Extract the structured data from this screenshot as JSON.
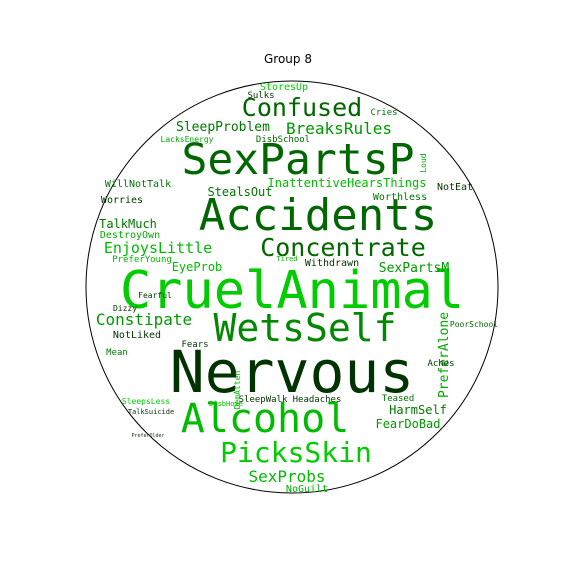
{
  "chart_data": {
    "type": "wordcloud",
    "title": "Group 8",
    "shape": "circle",
    "words": [
      {
        "text": "Nervous",
        "color": "#003300"
      },
      {
        "text": "CruelAnimal",
        "color": "#00cc00"
      },
      {
        "text": "Accidents",
        "color": "#006600"
      },
      {
        "text": "SexPartsP",
        "color": "#006600"
      },
      {
        "text": "WetsSelf",
        "color": "#008800"
      },
      {
        "text": "Alcohol",
        "color": "#00bb00"
      },
      {
        "text": "Concentrate",
        "color": "#006600"
      },
      {
        "text": "PicksSkin",
        "color": "#00cc00"
      },
      {
        "text": "Confused",
        "color": "#006600"
      },
      {
        "text": "EnjoysLittle",
        "color": "#00bb00"
      },
      {
        "text": "Constipate",
        "color": "#009900"
      },
      {
        "text": "SexProbs",
        "color": "#00bb00"
      },
      {
        "text": "BreaksRules",
        "color": "#009900"
      },
      {
        "text": "SleepProblem",
        "color": "#007700"
      },
      {
        "text": "StealsOut",
        "color": "#007700"
      },
      {
        "text": "InattentiveHearsThings",
        "color": "#00bb00"
      },
      {
        "text": "SexPartsM",
        "color": "#009900"
      },
      {
        "text": "EyeProb",
        "color": "#00bb00"
      },
      {
        "text": "PreferAlone",
        "color": "#00aa00"
      },
      {
        "text": "TalkMuch",
        "color": "#007700"
      },
      {
        "text": "HarmSelf",
        "color": "#007700"
      },
      {
        "text": "FearDoBad",
        "color": "#009900"
      },
      {
        "text": "NoGuilt",
        "color": "#00aa00"
      },
      {
        "text": "Worries",
        "color": "#003300"
      },
      {
        "text": "DestroyOwn",
        "color": "#00aa00"
      },
      {
        "text": "WillNotTalk",
        "color": "#007700"
      },
      {
        "text": "Withdrawn",
        "color": "#003300"
      },
      {
        "text": "NotLiked",
        "color": "#003300"
      },
      {
        "text": "StoresUp",
        "color": "#00cc00"
      },
      {
        "text": "Sulks",
        "color": "#003300"
      },
      {
        "text": "Cries",
        "color": "#007700"
      },
      {
        "text": "LacksEnergy",
        "color": "#00aa00"
      },
      {
        "text": "DisbSchool",
        "color": "#006600"
      },
      {
        "text": "Worthless",
        "color": "#007700"
      },
      {
        "text": "NotEat",
        "color": "#003300"
      },
      {
        "text": "Loud",
        "color": "#00aa00"
      },
      {
        "text": "PreferYoung",
        "color": "#00bb00"
      },
      {
        "text": "Mean",
        "color": "#007700"
      },
      {
        "text": "Fears",
        "color": "#003300"
      },
      {
        "text": "Fearful",
        "color": "#003300"
      },
      {
        "text": "Dizzy",
        "color": "#003300"
      },
      {
        "text": "Headaches",
        "color": "#003300"
      },
      {
        "text": "SleepWalk",
        "color": "#003300"
      },
      {
        "text": "Teased",
        "color": "#007700"
      },
      {
        "text": "Aches",
        "color": "#003300"
      },
      {
        "text": "PoorSchool",
        "color": "#006600"
      },
      {
        "text": "SleepsLess",
        "color": "#00cc00"
      },
      {
        "text": "TalkSuicide",
        "color": "#003300"
      },
      {
        "text": "PreferOlder",
        "color": "#003300"
      },
      {
        "text": "Tired",
        "color": "#00bb00"
      },
      {
        "text": "DisbHome",
        "color": "#00bb00"
      },
      {
        "text": "DemAtten",
        "color": "#00bb00"
      }
    ]
  }
}
